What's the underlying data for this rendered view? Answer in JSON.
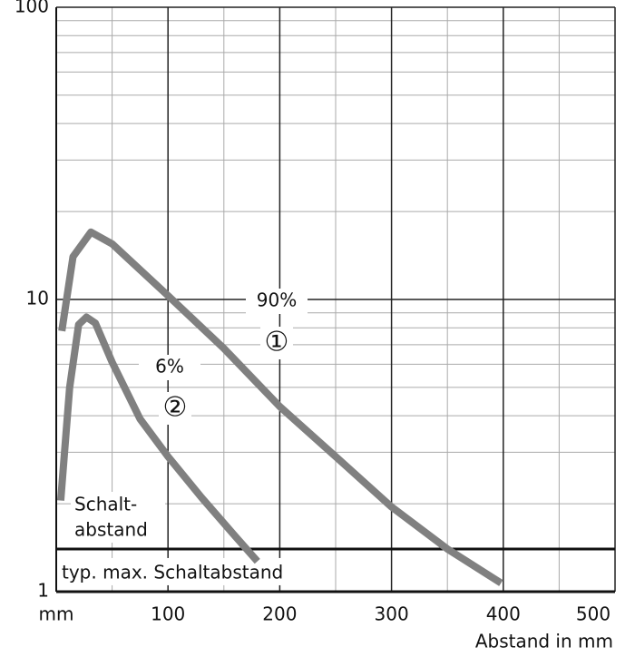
{
  "chart_data": {
    "type": "line",
    "x_label": "Abstand in mm",
    "x_unit_label": "mm",
    "xlim": [
      0,
      500
    ],
    "xticks": [
      100,
      200,
      300,
      400,
      500
    ],
    "x_minor_ticks": [
      50,
      150,
      250,
      350,
      450
    ],
    "ylim": [
      1,
      100
    ],
    "yticks": [
      1,
      10,
      100
    ],
    "log_y": true,
    "y_minor_ticks": [
      2,
      3,
      4,
      5,
      6,
      7,
      8,
      9,
      20,
      30,
      40,
      50,
      60,
      70,
      80,
      90
    ],
    "grid": true,
    "series": [
      {
        "name": "90%",
        "marker_label": "①",
        "color": "#808080",
        "x": [
          5,
          15,
          31,
          50,
          100,
          150,
          200,
          250,
          300,
          350,
          398
        ],
        "values": [
          7.8,
          14,
          17,
          15.5,
          10.3,
          6.8,
          4.3,
          2.9,
          1.95,
          1.4,
          1.07
        ]
      },
      {
        "name": "6%",
        "marker_label": "②",
        "color": "#808080",
        "x": [
          4,
          12,
          20,
          27,
          35,
          50,
          75,
          100,
          130,
          160,
          180
        ],
        "values": [
          2.05,
          5,
          8.2,
          8.7,
          8.3,
          6.1,
          3.9,
          2.9,
          2.1,
          1.55,
          1.27
        ]
      }
    ],
    "threshold": {
      "value": 1.4,
      "label": "typ. max. Schaltabstand",
      "side_label": [
        "Schalt-",
        "abstand"
      ]
    }
  }
}
